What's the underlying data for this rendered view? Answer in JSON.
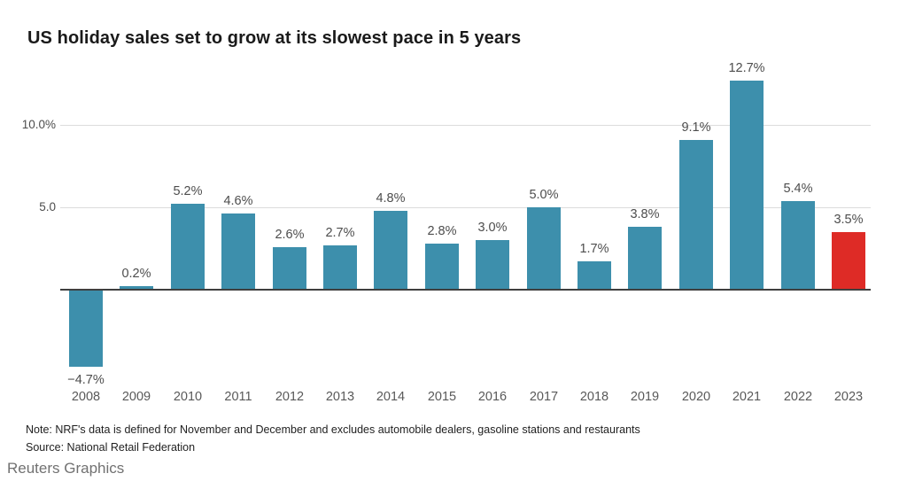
{
  "page": {
    "title": "US holiday sales set to grow at its slowest pace in 5 years",
    "note": "Note: NRF's data is defined for November and December and excludes automobile dealers, gasoline stations and restaurants",
    "source": "Source: National Retail Federation",
    "credit": "Reuters Graphics"
  },
  "chart_data": {
    "type": "bar",
    "title": "US holiday sales set to grow at its slowest pace in 5 years",
    "categories": [
      "2008",
      "2009",
      "2010",
      "2011",
      "2012",
      "2013",
      "2014",
      "2015",
      "2016",
      "2017",
      "2018",
      "2019",
      "2020",
      "2021",
      "2022",
      "2023"
    ],
    "values": [
      -4.7,
      0.2,
      5.2,
      4.6,
      2.6,
      2.7,
      4.8,
      2.8,
      3.0,
      5.0,
      1.7,
      3.8,
      9.1,
      12.7,
      5.4,
      3.5
    ],
    "value_labels": [
      "−4.7%",
      "0.2%",
      "5.2%",
      "4.6%",
      "2.6%",
      "2.7%",
      "4.8%",
      "2.8%",
      "3.0%",
      "5.0%",
      "1.7%",
      "3.8%",
      "9.1%",
      "12.7%",
      "5.4%",
      "3.5%"
    ],
    "highlight_index": 15,
    "bar_color": "#3d8fac",
    "highlight_color": "#de2b26",
    "y_ticks": [
      {
        "value": 10,
        "label": "10.0%"
      },
      {
        "value": 5,
        "label": "5.0"
      }
    ],
    "ylim": [
      -5.5,
      13.5
    ],
    "xlabel": "",
    "ylabel": "",
    "grid": true,
    "legend": "none",
    "unit": "percent"
  }
}
